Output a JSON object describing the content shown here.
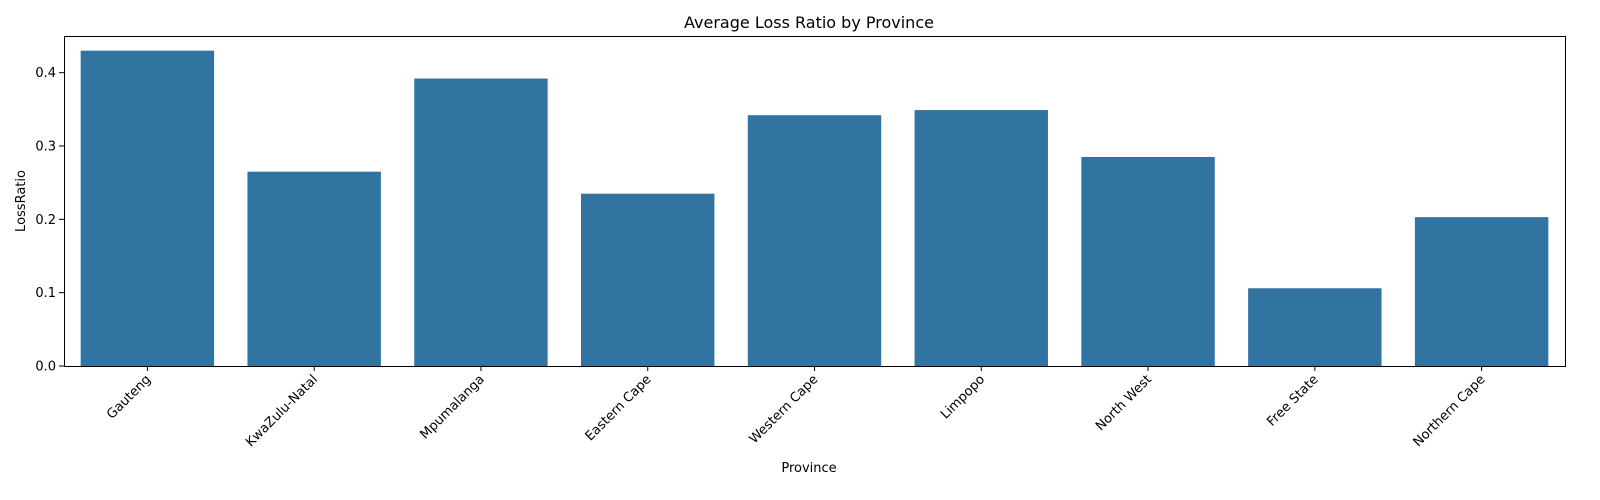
{
  "chart_data": {
    "type": "bar",
    "title": "Average Loss Ratio by Province",
    "xlabel": "Province",
    "ylabel": "LossRatio",
    "categories": [
      "Gauteng",
      "KwaZulu-Natal",
      "Mpumalanga",
      "Eastern Cape",
      "Western Cape",
      "Limpopo",
      "North West",
      "Free State",
      "Northern Cape"
    ],
    "values": [
      0.43,
      0.265,
      0.392,
      0.235,
      0.342,
      0.349,
      0.285,
      0.106,
      0.203
    ],
    "ylim": [
      0,
      0.45
    ],
    "yticks": [
      0.0,
      0.1,
      0.2,
      0.3,
      0.4
    ],
    "ytick_labels": [
      "0.0",
      "0.1",
      "0.2",
      "0.3",
      "0.4"
    ],
    "grid": false,
    "bar_color": "#3274a1"
  }
}
